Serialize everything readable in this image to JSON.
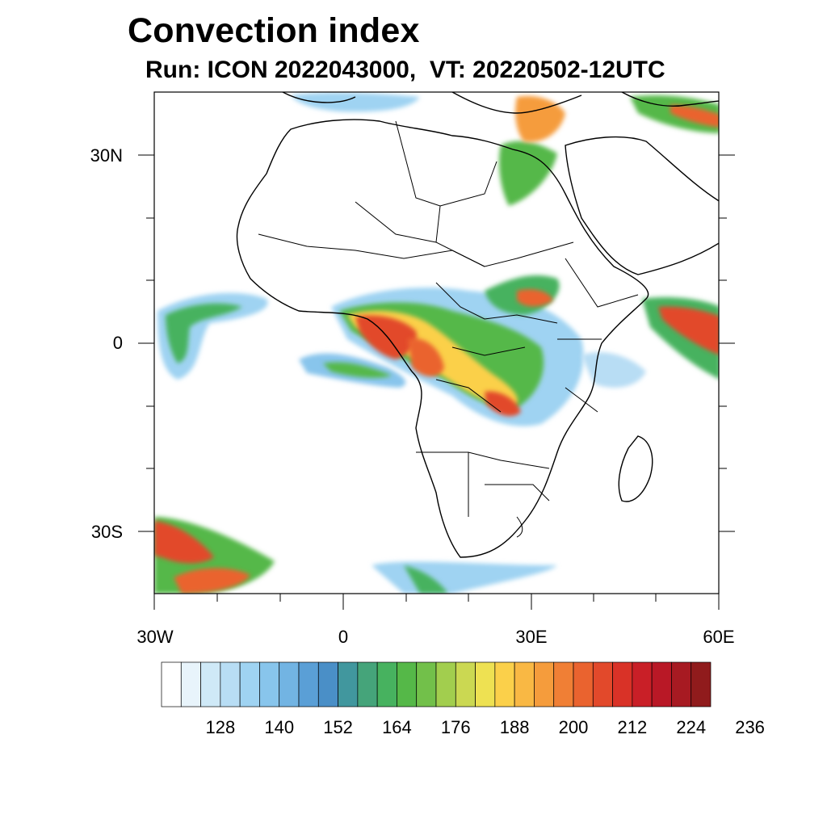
{
  "title": "Convection index",
  "subtitle": "Run: ICON 2022043000,  VT: 20220502-12UTC",
  "lat_labels": [
    "30N",
    "0",
    "30S"
  ],
  "lon_labels": [
    "30W",
    "0",
    "30E",
    "60E"
  ],
  "colorbar": {
    "labels": [
      "128",
      "140",
      "152",
      "164",
      "176",
      "188",
      "200",
      "212",
      "224",
      "236"
    ],
    "colors": [
      "#ffffff",
      "#e8f4fb",
      "#cfe9f7",
      "#b8ddf4",
      "#9fd3f2",
      "#88c5ec",
      "#72b4e3",
      "#5a9fd6",
      "#4a8fc7",
      "#41979e",
      "#45a47a",
      "#47b25f",
      "#55b848",
      "#72c04a",
      "#a2ce4e",
      "#cbd852",
      "#eee152",
      "#fbd04a",
      "#f9b844",
      "#f59c3c",
      "#f07f35",
      "#ea632f",
      "#e2492b",
      "#d93227",
      "#c91f27",
      "#b91826",
      "#a71a22",
      "#901b1c"
    ]
  },
  "map": {
    "extent": {
      "lon_min": -30,
      "lon_max": 60,
      "lat_min": -40,
      "lat_max": 40
    }
  }
}
